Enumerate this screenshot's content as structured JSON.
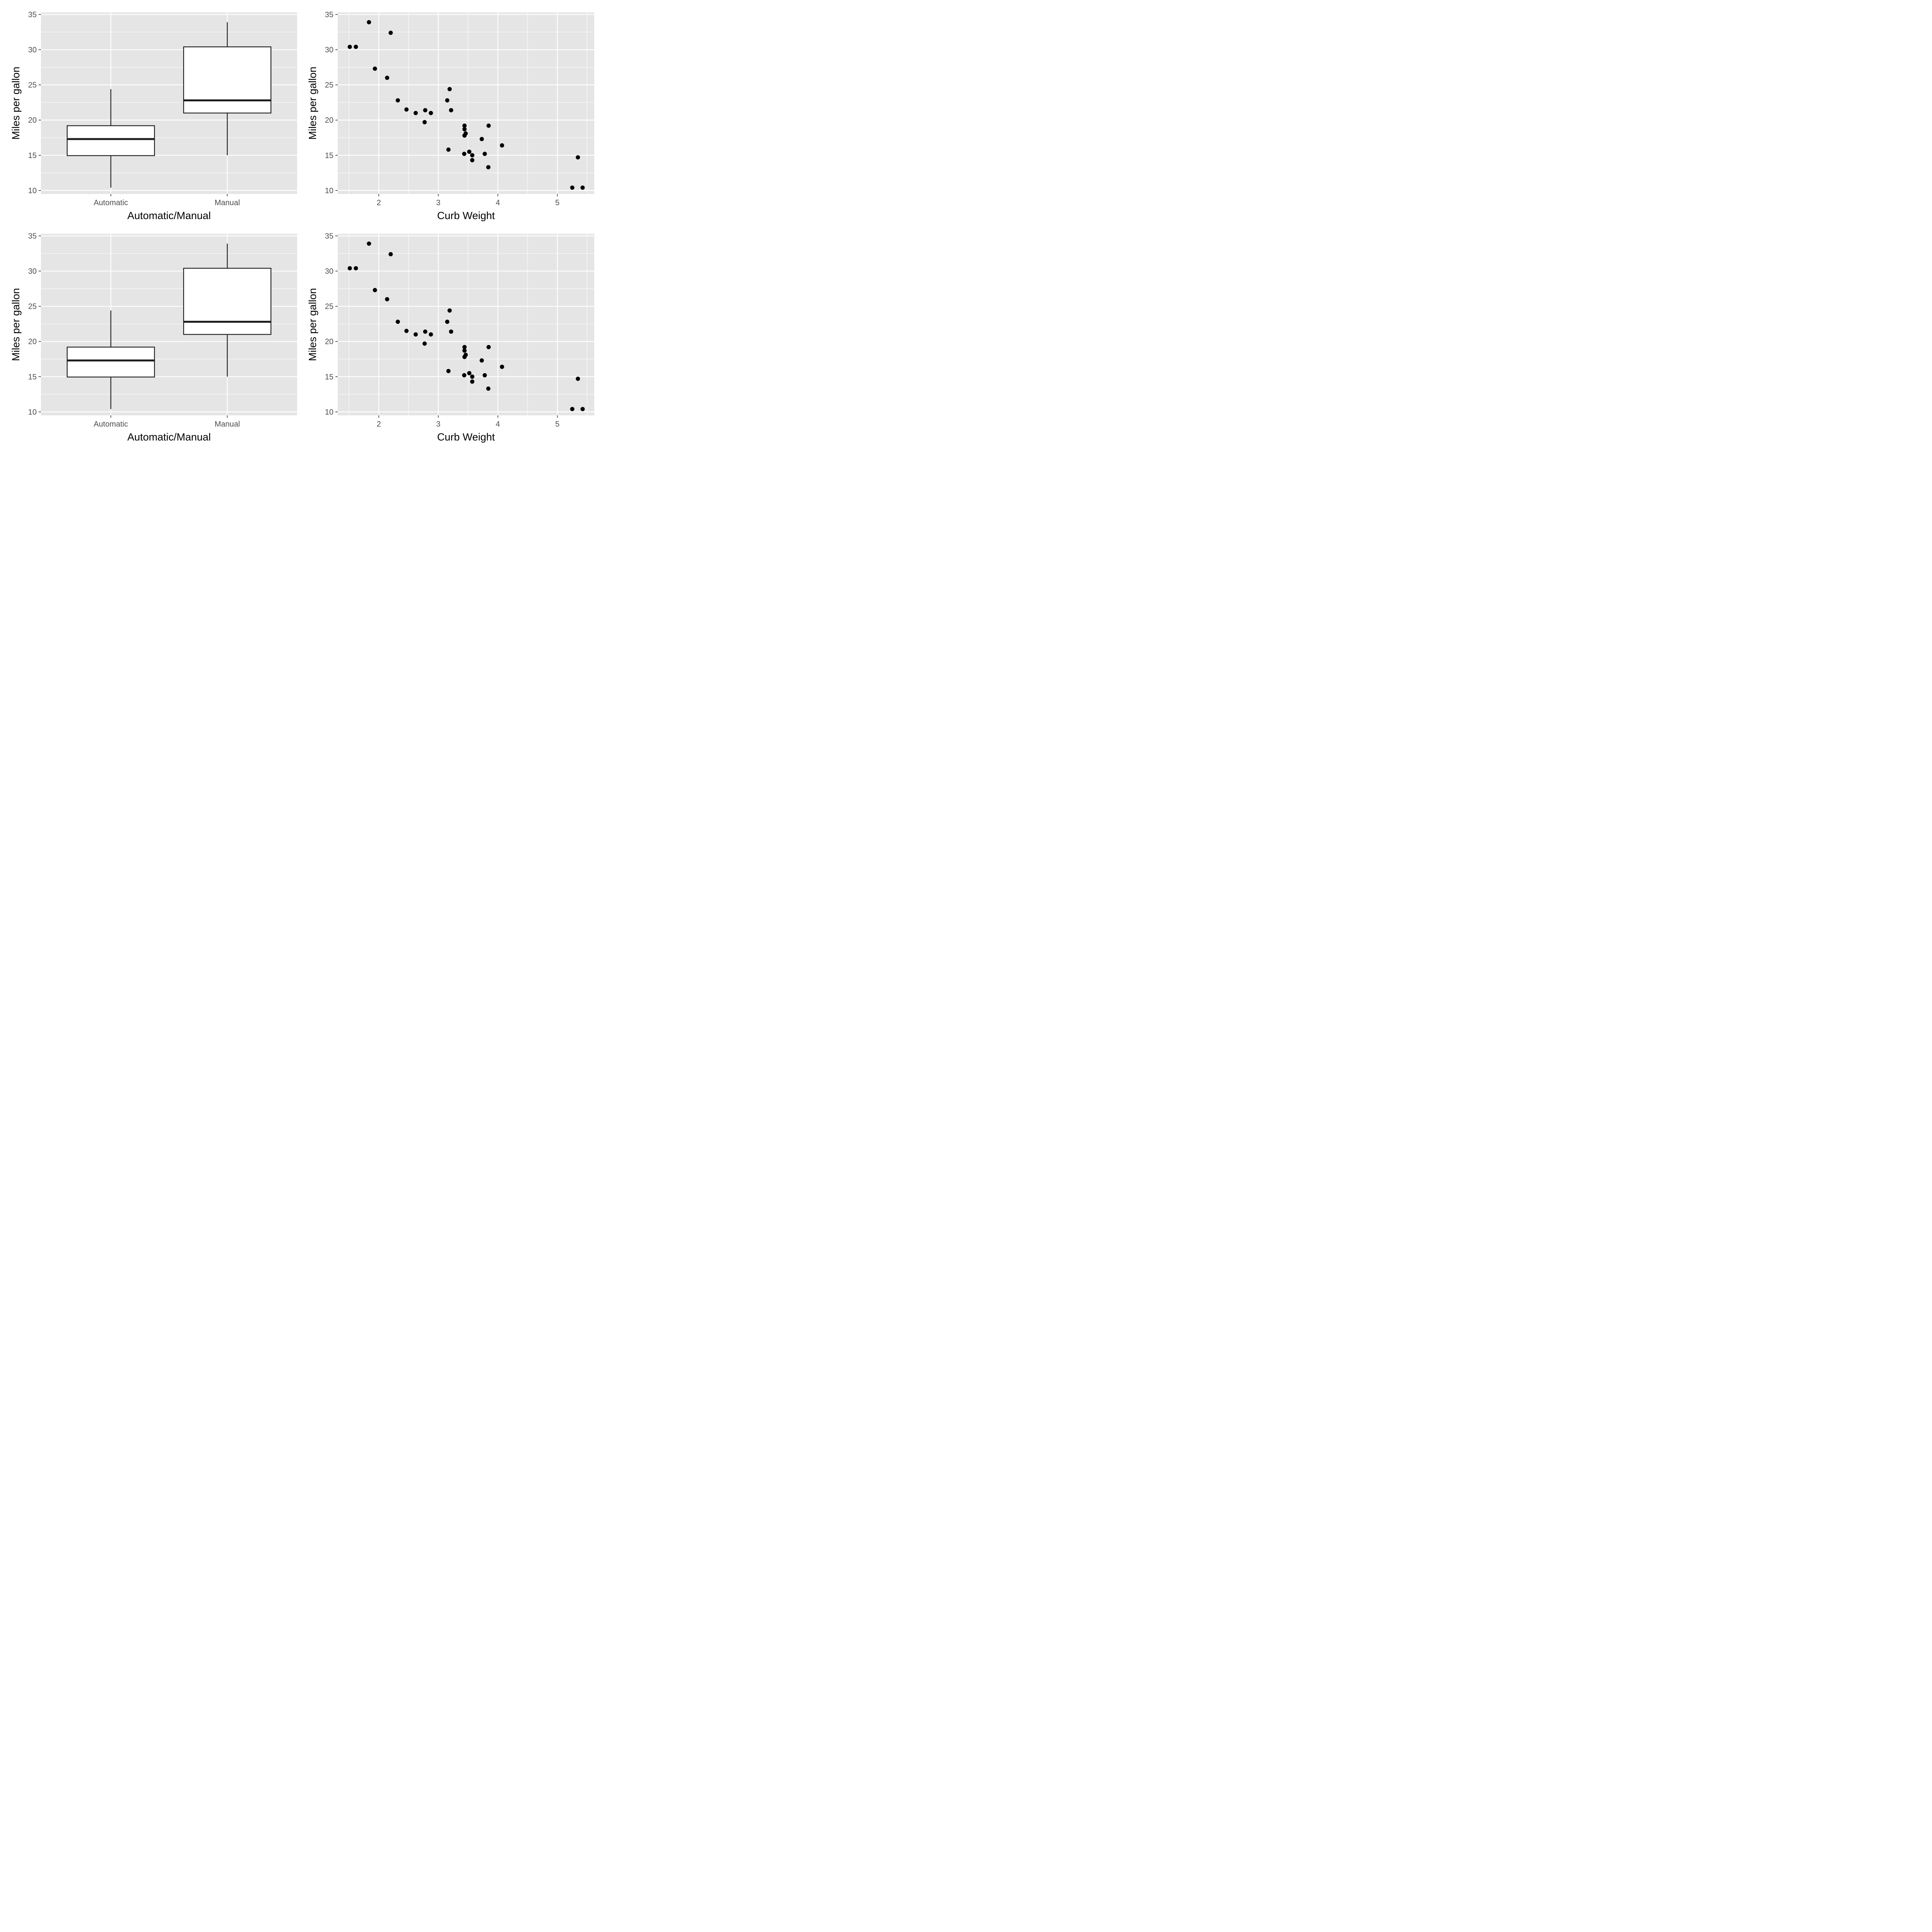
{
  "colors": {
    "panel": "#e5e5e5",
    "grid": "#ffffff",
    "box_fill": "#ffffff",
    "box_stroke": "#1a1a1a",
    "point": "#000000",
    "tick_text": "#4d4d4d"
  },
  "chart_data": [
    {
      "type": "box",
      "xlabel": "Automatic/Manual",
      "ylabel": "Miles per gallon",
      "ylim": [
        9.5,
        35.3
      ],
      "yticks": [
        10,
        15,
        20,
        25,
        30,
        35
      ],
      "categories": [
        "Automatic",
        "Manual"
      ],
      "boxes": [
        {
          "category": "Automatic",
          "min": 10.4,
          "q1": 14.95,
          "median": 17.3,
          "q3": 19.2,
          "max": 24.4
        },
        {
          "category": "Manual",
          "min": 15.0,
          "q1": 21.0,
          "median": 22.8,
          "q3": 30.4,
          "max": 33.9
        }
      ],
      "grid": true
    },
    {
      "type": "scatter",
      "xlabel": "Curb Weight",
      "ylabel": "Miles per gallon",
      "xlim": [
        1.31,
        5.62
      ],
      "ylim": [
        9.5,
        35.3
      ],
      "xticks": [
        2,
        3,
        4,
        5
      ],
      "yticks": [
        10,
        15,
        20,
        25,
        30,
        35
      ],
      "grid": true,
      "points": [
        [
          2.62,
          21.0
        ],
        [
          2.875,
          21.0
        ],
        [
          2.32,
          22.8
        ],
        [
          3.215,
          21.4
        ],
        [
          3.44,
          18.7
        ],
        [
          3.46,
          18.1
        ],
        [
          3.57,
          14.3
        ],
        [
          3.19,
          24.4
        ],
        [
          3.15,
          22.8
        ],
        [
          3.44,
          19.2
        ],
        [
          3.44,
          17.8
        ],
        [
          4.07,
          16.4
        ],
        [
          3.73,
          17.3
        ],
        [
          3.78,
          15.2
        ],
        [
          5.25,
          10.4
        ],
        [
          5.424,
          10.4
        ],
        [
          5.345,
          14.7
        ],
        [
          2.2,
          32.4
        ],
        [
          1.615,
          30.4
        ],
        [
          1.835,
          33.9
        ],
        [
          2.465,
          21.5
        ],
        [
          3.52,
          15.5
        ],
        [
          3.435,
          15.2
        ],
        [
          3.84,
          13.3
        ],
        [
          3.845,
          19.2
        ],
        [
          1.935,
          27.3
        ],
        [
          2.14,
          26.0
        ],
        [
          1.513,
          30.4
        ],
        [
          3.17,
          15.8
        ],
        [
          2.77,
          19.7
        ],
        [
          3.57,
          15.0
        ],
        [
          2.78,
          21.4
        ]
      ]
    },
    {
      "type": "box",
      "xlabel": "Automatic/Manual",
      "ylabel": "Miles per gallon",
      "ylim": [
        9.5,
        35.3
      ],
      "yticks": [
        10,
        15,
        20,
        25,
        30,
        35
      ],
      "categories": [
        "Automatic",
        "Manual"
      ],
      "boxes": [
        {
          "category": "Automatic",
          "min": 10.4,
          "q1": 14.95,
          "median": 17.3,
          "q3": 19.2,
          "max": 24.4
        },
        {
          "category": "Manual",
          "min": 15.0,
          "q1": 21.0,
          "median": 22.8,
          "q3": 30.4,
          "max": 33.9
        }
      ],
      "grid": true
    },
    {
      "type": "scatter",
      "xlabel": "Curb Weight",
      "ylabel": "Miles per gallon",
      "xlim": [
        1.31,
        5.62
      ],
      "ylim": [
        9.5,
        35.3
      ],
      "xticks": [
        2,
        3,
        4,
        5
      ],
      "yticks": [
        10,
        15,
        20,
        25,
        30,
        35
      ],
      "grid": true,
      "points": [
        [
          2.62,
          21.0
        ],
        [
          2.875,
          21.0
        ],
        [
          2.32,
          22.8
        ],
        [
          3.215,
          21.4
        ],
        [
          3.44,
          18.7
        ],
        [
          3.46,
          18.1
        ],
        [
          3.57,
          14.3
        ],
        [
          3.19,
          24.4
        ],
        [
          3.15,
          22.8
        ],
        [
          3.44,
          19.2
        ],
        [
          3.44,
          17.8
        ],
        [
          4.07,
          16.4
        ],
        [
          3.73,
          17.3
        ],
        [
          3.78,
          15.2
        ],
        [
          5.25,
          10.4
        ],
        [
          5.424,
          10.4
        ],
        [
          5.345,
          14.7
        ],
        [
          2.2,
          32.4
        ],
        [
          1.615,
          30.4
        ],
        [
          1.835,
          33.9
        ],
        [
          2.465,
          21.5
        ],
        [
          3.52,
          15.5
        ],
        [
          3.435,
          15.2
        ],
        [
          3.84,
          13.3
        ],
        [
          3.845,
          19.2
        ],
        [
          1.935,
          27.3
        ],
        [
          2.14,
          26.0
        ],
        [
          1.513,
          30.4
        ],
        [
          3.17,
          15.8
        ],
        [
          2.77,
          19.7
        ],
        [
          3.57,
          15.0
        ],
        [
          2.78,
          21.4
        ]
      ]
    }
  ]
}
